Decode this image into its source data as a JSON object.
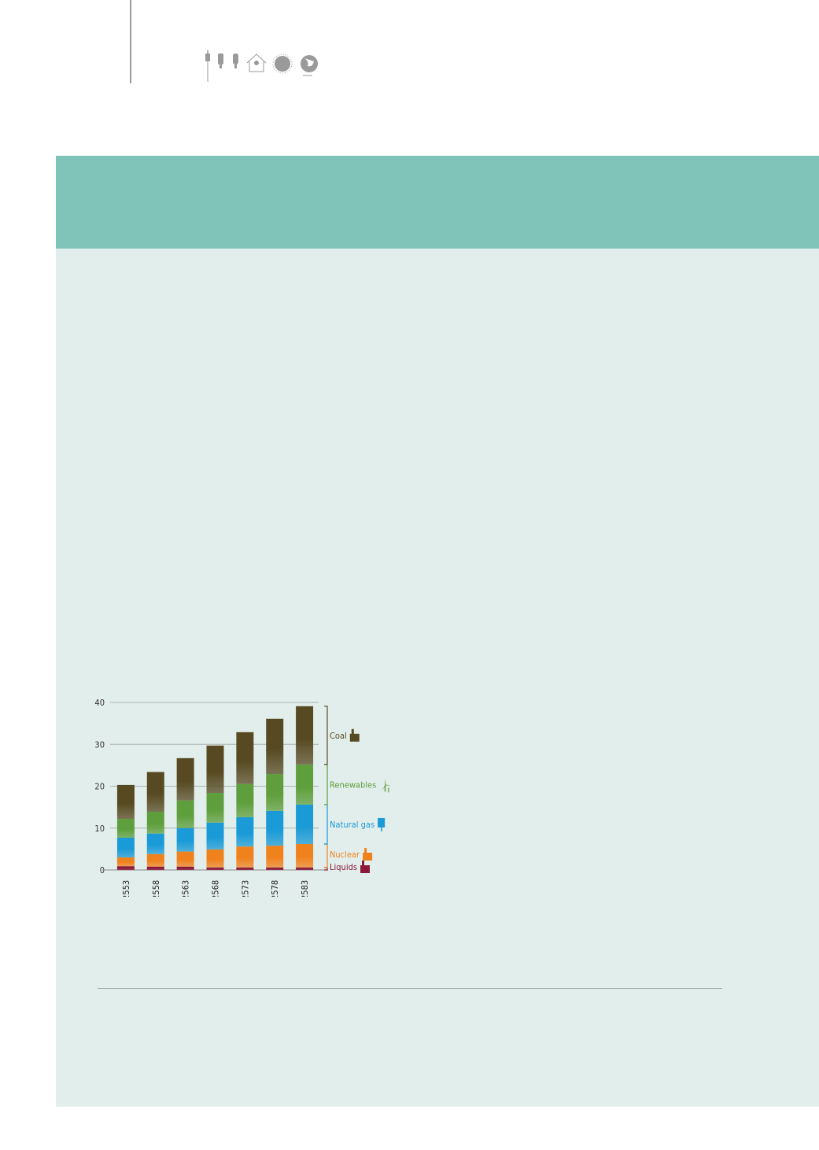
{
  "header_icons": [
    "plug-icon",
    "bulb-icon",
    "cfl-bulb-icon",
    "green-house-icon",
    "sun-icon",
    "globe-icon"
  ],
  "chart_data": {
    "type": "bar",
    "stacked": true,
    "categories": [
      "2553",
      "2558",
      "2563",
      "2568",
      "2573",
      "2578",
      "2583"
    ],
    "ylim": [
      0,
      40
    ],
    "yticks": [
      "0",
      "10",
      "20",
      "30",
      "40"
    ],
    "grid": true,
    "legend_placement": "right, bracket labels",
    "series": [
      {
        "name": "Liquids",
        "color": "#8b1a3a",
        "values": [
          0.9,
          0.8,
          0.8,
          0.6,
          0.6,
          0.6,
          0.6
        ]
      },
      {
        "name": "Nuclear",
        "color": "#f0821e",
        "values": [
          2.1,
          3.0,
          3.6,
          4.3,
          5.0,
          5.2,
          5.6
        ]
      },
      {
        "name": "Natural gas",
        "color": "#1a9ad6",
        "values": [
          4.7,
          4.9,
          5.6,
          6.4,
          7.0,
          8.3,
          9.4
        ]
      },
      {
        "name": "Renewables",
        "color": "#5e9e3c",
        "values": [
          4.5,
          5.2,
          6.6,
          7.1,
          7.9,
          8.8,
          9.6
        ]
      },
      {
        "name": "Coal",
        "color": "#574a22",
        "values": [
          8.1,
          9.5,
          10.1,
          11.3,
          12.4,
          13.2,
          13.9
        ]
      }
    ],
    "legend_icons": {
      "Liquids": "oil-refinery-icon",
      "Nuclear": "nuclear-plant-icon",
      "Natural gas": "solar-panel-icon",
      "Renewables": "wind-turbine-icon",
      "Coal": "factory-icon"
    }
  }
}
